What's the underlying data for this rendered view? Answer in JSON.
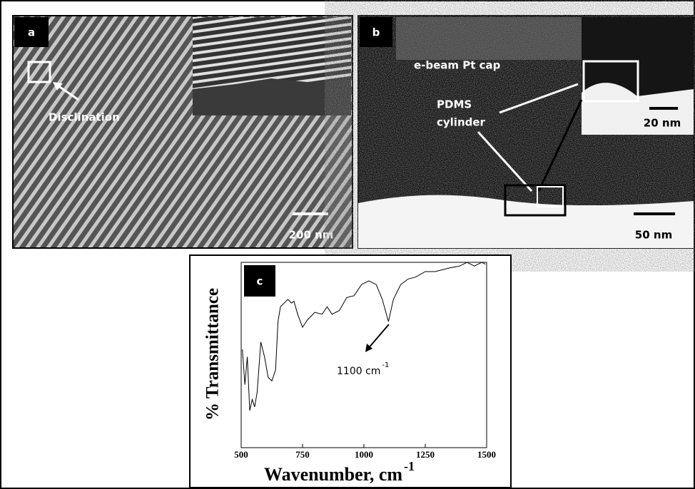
{
  "panels": {
    "a": {
      "label": "a",
      "annotation": "Disclination",
      "scale_bar": "200 nm"
    },
    "b": {
      "label": "b",
      "cap": "e-beam Pt cap",
      "cylinder_line1": "PDMS",
      "cylinder_line2": "cylinder",
      "inset_scale_bar": "20 nm",
      "scale_bar": "50 nm"
    }
  },
  "chart_data": {
    "type": "line",
    "label": "c",
    "xlabel": "Wavenumber, cm",
    "xlabel_sup": "-1",
    "ylabel": "% Transmittance",
    "annotation": "1100 cm",
    "annotation_sup": "-1",
    "xlim": [
      500,
      1500
    ],
    "xticks": [
      500,
      750,
      1000,
      1250,
      1500
    ],
    "ylim": [
      0,
      100
    ],
    "x": [
      505,
      515,
      525,
      535,
      545,
      555,
      565,
      580,
      595,
      610,
      625,
      640,
      650,
      660,
      675,
      690,
      705,
      715,
      730,
      750,
      770,
      800,
      830,
      850,
      870,
      900,
      930,
      960,
      990,
      1020,
      1050,
      1075,
      1100,
      1120,
      1150,
      1180,
      1210,
      1250,
      1290,
      1320,
      1350,
      1390,
      1420,
      1450,
      1480,
      1495
    ],
    "series": [
      {
        "color": "#000000",
        "values": [
          53,
          34,
          49,
          20,
          26,
          22,
          30,
          57,
          49,
          38,
          36,
          42,
          68,
          76,
          78,
          80,
          78,
          79,
          72,
          65,
          69,
          73,
          72,
          76,
          72,
          74,
          81,
          82,
          88,
          90,
          88,
          80,
          68,
          80,
          88,
          91,
          92,
          95,
          95,
          96,
          97,
          98,
          100,
          98,
          100,
          99
        ]
      }
    ]
  }
}
